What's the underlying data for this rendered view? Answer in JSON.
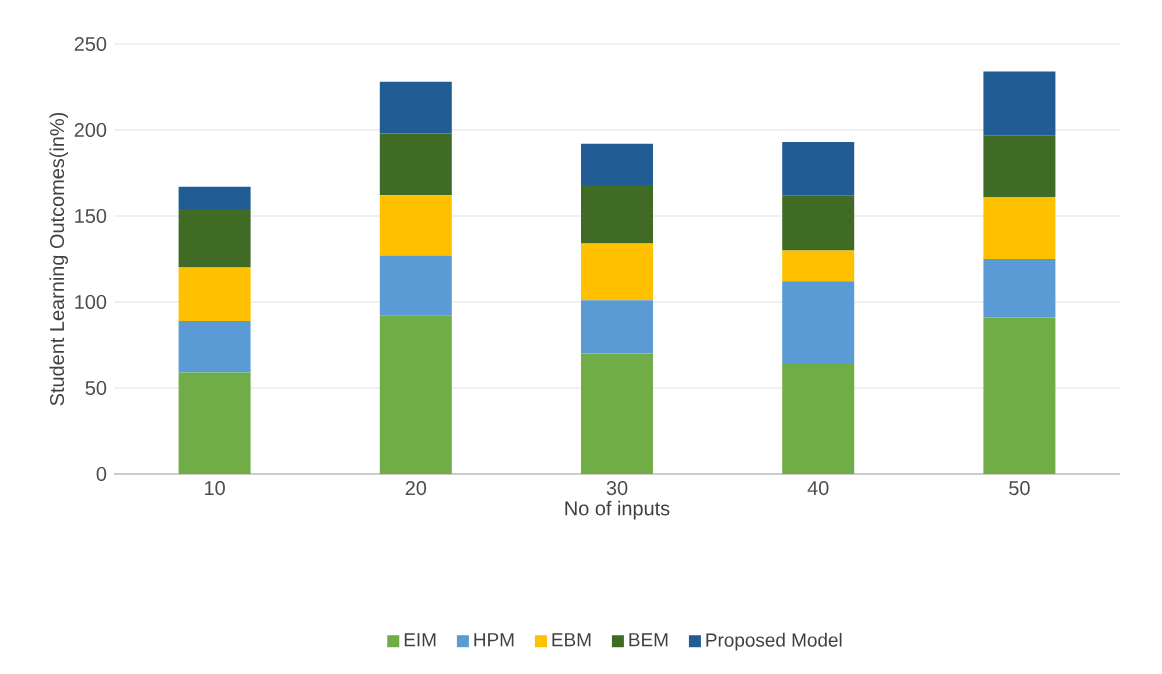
{
  "chart_data": {
    "type": "bar",
    "stacked": true,
    "xlabel": "No of inputs",
    "ylabel": "Student Learning Outcomes(in%)",
    "categories": [
      "10",
      "20",
      "30",
      "40",
      "50"
    ],
    "series": [
      {
        "name": "EIM",
        "color": "#70ad47",
        "values": [
          59,
          92,
          70,
          64,
          91
        ]
      },
      {
        "name": "HPM",
        "color": "#5b9bd5",
        "values": [
          30,
          35,
          31,
          48,
          34
        ]
      },
      {
        "name": "EBM",
        "color": "#ffc000",
        "values": [
          31,
          35,
          33,
          18,
          36
        ]
      },
      {
        "name": "BEM",
        "color": "#3f6b25",
        "values": [
          34,
          36,
          34,
          32,
          36
        ]
      },
      {
        "name": "Proposed Model",
        "color": "#215d94",
        "values": [
          13,
          30,
          24,
          31,
          37
        ]
      }
    ],
    "ylim": [
      0,
      250
    ],
    "yticks": [
      0,
      50,
      100,
      150,
      200,
      250
    ],
    "grid": "y",
    "legend": "bottom"
  }
}
